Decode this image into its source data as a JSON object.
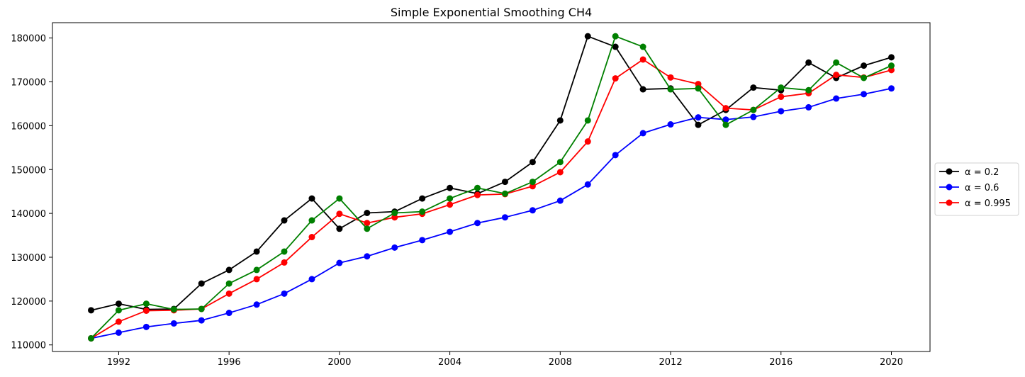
{
  "chart_data": {
    "type": "line",
    "title": "Simple Exponential Smoothing CH4",
    "xlabel": "",
    "ylabel": "",
    "xlim": [
      1989.6,
      2021.4
    ],
    "ylim": [
      108500,
      183500
    ],
    "xticks": [
      1992,
      1996,
      2000,
      2004,
      2008,
      2012,
      2016,
      2020
    ],
    "xtick_labels": [
      "1992",
      "1996",
      "2000",
      "2004",
      "2008",
      "2012",
      "2016",
      "2020"
    ],
    "yticks": [
      110000,
      120000,
      130000,
      140000,
      150000,
      160000,
      170000,
      180000
    ],
    "ytick_labels": [
      "110000",
      "120000",
      "130000",
      "140000",
      "150000",
      "160000",
      "170000",
      "180000"
    ],
    "grid": false,
    "legend_position": "center-right outside",
    "x": [
      1991,
      1992,
      1993,
      1994,
      1995,
      1996,
      1997,
      1998,
      1999,
      2000,
      2001,
      2002,
      2003,
      2004,
      2005,
      2006,
      2007,
      2008,
      2009,
      2010,
      2011,
      2012,
      2013,
      2014,
      2015,
      2016,
      2017,
      2018,
      2019,
      2020
    ],
    "series": [
      {
        "name": "α = 0.2",
        "legend": true,
        "color": "#000000",
        "values": [
          117900,
          119400,
          118100,
          118200,
          124000,
          127100,
          131300,
          138400,
          143400,
          136500,
          140100,
          140400,
          143400,
          145800,
          144500,
          147200,
          151700,
          161200,
          180400,
          178000,
          168300,
          168500,
          160200,
          163600,
          168700,
          168100,
          174400,
          170900,
          173700,
          175600
        ]
      },
      {
        "name": "α = 0.6",
        "legend": true,
        "color": "#0000ff",
        "values": [
          111500,
          112800,
          114100,
          114900,
          115600,
          117300,
          119200,
          121700,
          125000,
          128700,
          130200,
          132200,
          133900,
          135800,
          137800,
          139100,
          140700,
          142900,
          146600,
          153300,
          158300,
          160300,
          161900,
          161400,
          162000,
          163300,
          164200,
          166200,
          167200,
          168500
        ]
      },
      {
        "name": "α = 0.995",
        "legend": true,
        "color": "#ff0000",
        "values": [
          111500,
          115300,
          117800,
          117900,
          118200,
          121700,
          125000,
          128800,
          134600,
          139900,
          137800,
          139100,
          139900,
          142000,
          144200,
          144400,
          146200,
          149400,
          156400,
          170800,
          175100,
          171000,
          169500,
          164000,
          163600,
          166600,
          167400,
          171600,
          171000,
          172700
        ]
      },
      {
        "legend": false,
        "color": "#008000",
        "values": [
          111500,
          117900,
          119400,
          118100,
          118200,
          124000,
          127100,
          131300,
          138400,
          143400,
          136500,
          140100,
          140400,
          143400,
          145800,
          144500,
          147200,
          151700,
          161200,
          180400,
          178000,
          168300,
          168500,
          160200,
          163600,
          168700,
          168100,
          174400,
          170900,
          173700
        ]
      }
    ]
  }
}
